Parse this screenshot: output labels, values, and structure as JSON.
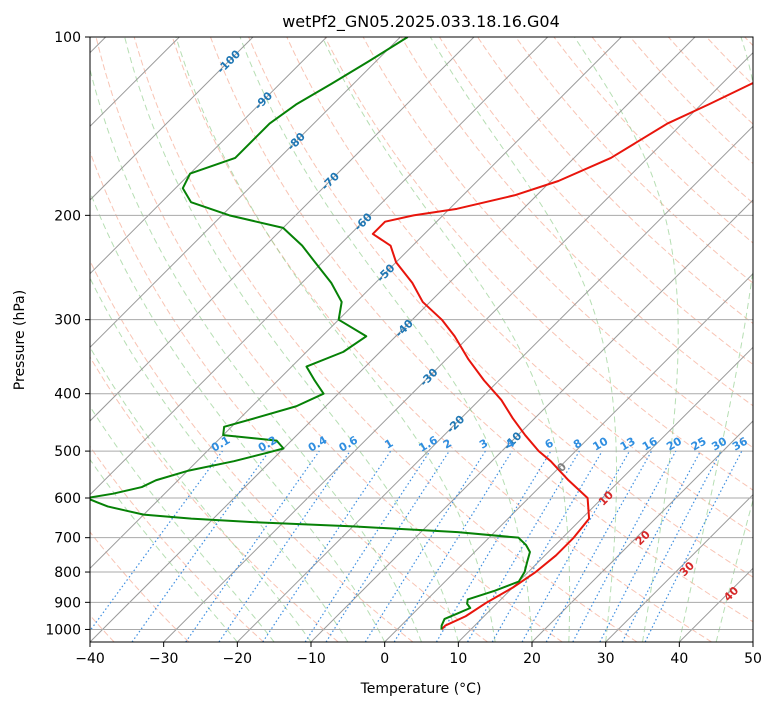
{
  "chart_data": {
    "type": "line",
    "title": "wetPf2_GN05.2025.033.18.16.G04",
    "xlabel": "Temperature (°C)",
    "ylabel": "Pressure (hPa)",
    "xlim": [
      -40,
      50
    ],
    "ylim": [
      1050,
      100
    ],
    "y_scale": "log",
    "skew": "skew-T",
    "x_ticks": [
      "−40",
      "−30",
      "−20",
      "−10",
      "0",
      "10",
      "20",
      "30",
      "40",
      "50"
    ],
    "y_ticks": [
      "100",
      "200",
      "300",
      "400",
      "500",
      "600",
      "700",
      "800",
      "900",
      "1000"
    ],
    "grid": true,
    "colors": {
      "temperature": "#e8150c",
      "dewpoint": "#068106",
      "dry_adiabat": "#f4a58c",
      "moist_adiabat": "#8fcc8a",
      "mixing_ratio": "#3d8ee0",
      "isotherm": "#9a9a9a",
      "isobar": "#aaaaaa",
      "isotherm_label": "#1f77b4",
      "mixing_label": "#2f8ee0",
      "dry_label": "#d62728",
      "zero_label": "#7f7f7f"
    },
    "series": [
      {
        "name": "",
        "role": "temperature",
        "p": [
          1000,
          985,
          950,
          900,
          850,
          800,
          750,
          700,
          650,
          600,
          560,
          520,
          500,
          470,
          440,
          410,
          380,
          350,
          320,
          300,
          280,
          260,
          240,
          225,
          215,
          205,
          200,
          195,
          185,
          175,
          160,
          140,
          130,
          120,
          110,
          100
        ],
        "t": [
          6,
          6,
          7.5,
          8.5,
          10,
          11,
          11.5,
          11.5,
          11,
          8,
          3,
          -2,
          -5,
          -9,
          -13,
          -17,
          -22,
          -27,
          -32,
          -36,
          -41,
          -45,
          -50,
          -53,
          -57,
          -57,
          -54,
          -49,
          -43,
          -39,
          -35,
          -32,
          -29,
          -26,
          -23,
          -20
        ]
      },
      {
        "name": "",
        "role": "dewpoint",
        "p": [
          1000,
          985,
          960,
          940,
          920,
          905,
          890,
          860,
          830,
          800,
          770,
          740,
          720,
          700,
          685,
          670,
          660,
          650,
          640,
          630,
          620,
          610,
          600,
          590,
          575,
          560,
          540,
          520,
          505,
          495,
          480,
          470,
          455,
          440,
          420,
          400,
          380,
          360,
          340,
          320,
          300,
          280,
          260,
          240,
          225,
          210,
          200,
          190,
          180,
          170,
          160,
          150,
          140,
          130,
          120,
          110,
          100
        ],
        "t": [
          6,
          5.5,
          5,
          6,
          7,
          6,
          5.5,
          8,
          10,
          9.5,
          8.5,
          7.5,
          6,
          4,
          -5,
          -20,
          -33,
          -43,
          -50,
          -53,
          -56,
          -58,
          -60,
          -57,
          -54,
          -53,
          -50,
          -45,
          -42,
          -40,
          -42,
          -50,
          -51,
          -48,
          -44,
          -42,
          -45,
          -48,
          -45,
          -44,
          -50,
          -52,
          -56,
          -61,
          -65,
          -70,
          -79,
          -86,
          -89,
          -90,
          -86,
          -86,
          -86,
          -85,
          -83,
          -81,
          -79
        ]
      }
    ],
    "isotherm_labels": [
      "-100",
      "-90",
      "-80",
      "-70",
      "-60",
      "-50",
      "-40",
      "-30",
      "-20",
      "-10"
    ],
    "mixing_ratio_labels": [
      "0.1",
      "0.2",
      "0.4",
      "0.6",
      "1",
      "1.6",
      "2",
      "3",
      "4",
      "6",
      "8",
      "10",
      "13",
      "16",
      "20",
      "25",
      "30",
      "36"
    ],
    "dry_adiabat_labels": [
      "10",
      "20",
      "30",
      "40"
    ],
    "freezing_label": "0"
  }
}
